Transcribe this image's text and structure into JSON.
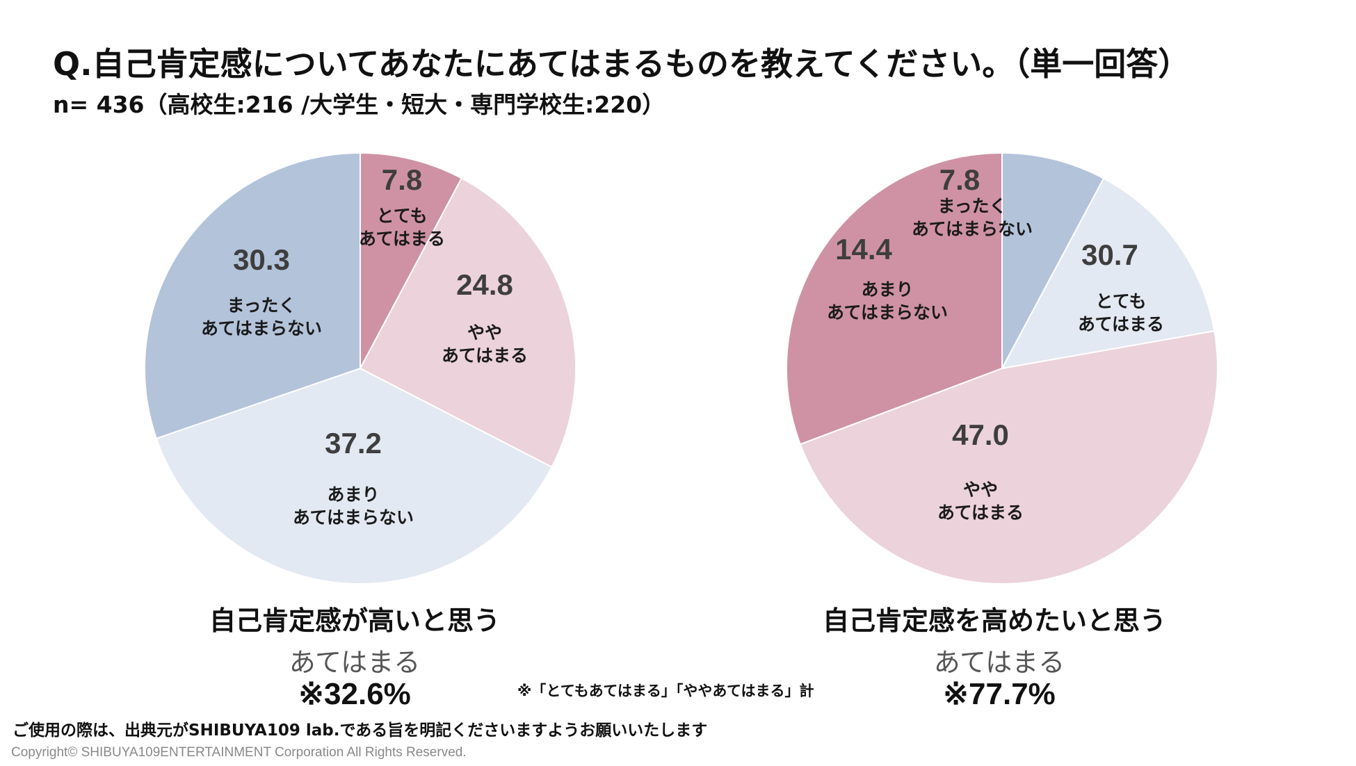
{
  "title": "Q.自己肯定感についてあなたにあてはまるものを教えてください。（単一回答）",
  "subtitle": "n= 436（高校生:216 /大学生・短大・専門学校生:220）",
  "chart_data": [
    {
      "type": "pie",
      "title": "自己肯定感が高いと思う",
      "slices": [
        {
          "label": "とても\nあてはまる",
          "value": 7.8,
          "color": "#cf92a5"
        },
        {
          "label": "やや\nあてはまる",
          "value": 24.8,
          "color": "#ecd2db"
        },
        {
          "label": "あまり\nあてはまらない",
          "value": 37.2,
          "color": "#e3e9f2"
        },
        {
          "label": "まったく\nあてはまらない",
          "value": 30.3,
          "color": "#b3c3da"
        }
      ],
      "summary_label": "あてはまる",
      "summary_value": "※32.6%"
    },
    {
      "type": "pie",
      "title": "自己肯定感を高めたいと思う",
      "slices": [
        {
          "label": "とても\nあてはまる",
          "value": 30.7,
          "color": "#cf92a5"
        },
        {
          "label": "やや\nあてはまる",
          "value": 47.0,
          "color": "#ecd2db"
        },
        {
          "label": "あまり\nあてはまらない",
          "value": 14.4,
          "color": "#e3e9f2"
        },
        {
          "label": "まったく\nあてはまらない",
          "value": 7.8,
          "color": "#b3c3da"
        }
      ],
      "summary_label": "あてはまる",
      "summary_value": "※77.7%"
    }
  ],
  "note": "※「とてもあてはまる」「ややあてはまる」計",
  "usage": "ご使用の際は、出典元がSHIBUYA109 lab.である旨を明記くださいますようお願いいたします",
  "copyright": "Copyright© SHIBUYA109ENTERTAINMENT Corporation All Rights Reserved."
}
